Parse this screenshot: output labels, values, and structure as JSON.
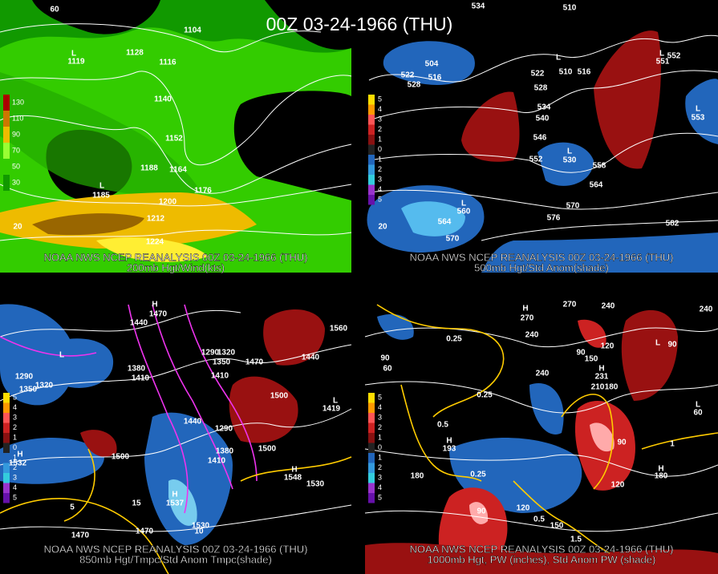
{
  "title": "00Z 03-24-1966 (THU)",
  "panels": [
    {
      "source": "NOAA NWS NCEP REANALYSIS 00Z 03-24-1966 (THU)",
      "caption": "200mb Hgt/Wind(kts)",
      "colorbar": [
        "130",
        "110",
        "90",
        "70",
        "50",
        "30"
      ],
      "labels": [
        "1104",
        "1128",
        "1116",
        "1140",
        "1152",
        "1188",
        "1164",
        "1176",
        "1200",
        "1212",
        "1224",
        "L",
        "1119",
        "L",
        "1185",
        "60",
        "20"
      ]
    },
    {
      "source": "NOAA NWS NCEP REANALYSIS 00Z 03-24-1966 (THU)",
      "caption": "500mb Hgt/Std Anom(shade)",
      "colorbar": [
        "5",
        "4",
        "3",
        "2",
        "1",
        "0",
        "1",
        "2",
        "3",
        "4",
        "5"
      ],
      "labels": [
        "534",
        "510",
        "504",
        "522",
        "528",
        "516",
        "522",
        "516",
        "510",
        "L",
        "528",
        "534",
        "540",
        "546",
        "552",
        "L",
        "530",
        "558",
        "564",
        "570",
        "576",
        "582",
        "L",
        "551",
        "552",
        "L",
        "553",
        "L",
        "560",
        "564",
        "570",
        "20"
      ]
    },
    {
      "source": "NOAA NWS NCEP REANALYSIS 00Z 03-24-1966 (THU)",
      "caption": "850mb Hgt/Tmpc/Std Anom Tmpc(shade)",
      "colorbar": [
        "5",
        "4",
        "3",
        "2",
        "1",
        "0",
        "1",
        "2",
        "3",
        "4",
        "5"
      ],
      "labels": [
        "H",
        "1470",
        "1440",
        "1380",
        "1410",
        "1290",
        "1320",
        "1350",
        "1410",
        "1470",
        "1560",
        "1440",
        "1500",
        "1500",
        "1440",
        "1290",
        "1380",
        "1410",
        "1530",
        "1500",
        "H",
        "1532",
        "1470",
        "1470",
        "1530",
        "H",
        "1548",
        "L",
        "1419",
        "L",
        "1290",
        "1320",
        "1350",
        "10",
        "5",
        "15",
        "H",
        "1537"
      ]
    },
    {
      "source": "NOAA NWS NCEP REANALYSIS 00Z 03-24-1966 (THU)",
      "caption": "1000mb Hgt, PW (inches), Std Anom PW (shade)",
      "colorbar": [
        "5",
        "4",
        "3",
        "2",
        "1",
        "0",
        "1",
        "2",
        "3",
        "4",
        "5"
      ],
      "labels": [
        "270",
        "240",
        "240",
        "H",
        "270",
        "240",
        "0.25",
        "90",
        "60",
        "90",
        "150",
        "120",
        "L",
        "90",
        "240",
        "H",
        "231",
        "210",
        "180",
        "0.25",
        "0.5",
        "H",
        "193",
        "0.25",
        "180",
        "90",
        "120",
        "150",
        "H",
        "180",
        "120",
        "90",
        "1",
        "0.5",
        "1.5",
        "L",
        "60"
      ]
    }
  ]
}
